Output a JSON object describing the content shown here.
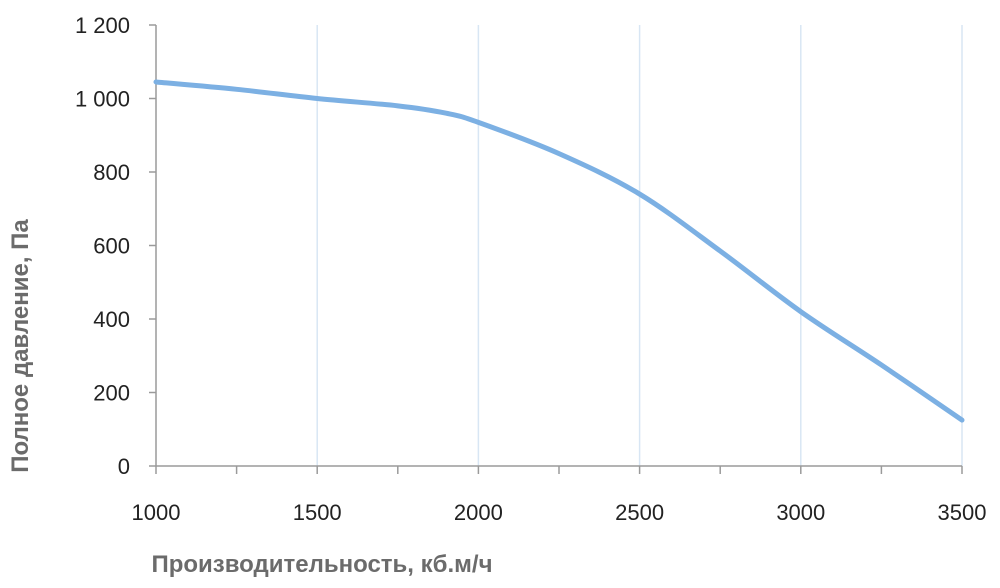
{
  "chart_data": {
    "type": "line",
    "title": "",
    "xlabel": "Производительность, кб.м/ч",
    "ylabel": "Полное  давление, Па",
    "xlim": [
      1000,
      3500
    ],
    "ylim": [
      0,
      1200
    ],
    "x_ticks": [
      1000,
      1500,
      2000,
      2500,
      3000,
      3500
    ],
    "x_tick_labels": [
      "1000",
      "1500",
      "2000",
      "2500",
      "3000",
      "3500"
    ],
    "y_ticks": [
      0,
      200,
      400,
      600,
      800,
      1000,
      1200
    ],
    "y_tick_labels": [
      "0",
      "200",
      "400",
      "600",
      "800",
      "1 000",
      "1 200"
    ],
    "grid": {
      "vertical": true,
      "horizontal": false
    },
    "legend": "none",
    "series": [
      {
        "color": "#7cb0e3",
        "x": [
          1000,
          1250,
          1500,
          1750,
          1900,
          2000,
          2250,
          2500,
          2750,
          3000,
          3250,
          3500
        ],
        "y": [
          1045,
          1025,
          1000,
          980,
          960,
          935,
          850,
          740,
          585,
          420,
          275,
          125
        ]
      }
    ],
    "axis_color": "#9a9a9a",
    "grid_color": "#d8e6f4"
  }
}
